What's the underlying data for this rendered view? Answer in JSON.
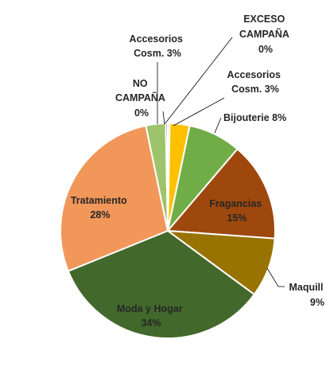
{
  "chart_data": {
    "type": "pie",
    "title": "",
    "slices": [
      {
        "label": "EXCESO CAMPAÑA",
        "percent_label": "0%",
        "value": 0.3,
        "color": "#FFC000"
      },
      {
        "label": "Accesorios Cosm.",
        "percent_label": "3%",
        "value": 3,
        "color": "#FFC000"
      },
      {
        "label": "Bijouterie",
        "percent_label": "8%",
        "value": 8,
        "color": "#70AD47"
      },
      {
        "label": "Fragancias",
        "percent_label": "15%",
        "value": 15,
        "color": "#9E480E"
      },
      {
        "label": "Maquill",
        "percent_label": "9%",
        "value": 9,
        "color": "#997300"
      },
      {
        "label": "Moda y Hogar",
        "percent_label": "34%",
        "value": 34,
        "color": "#43682B"
      },
      {
        "label": "Tratamiento",
        "percent_label": "28%",
        "value": 28,
        "color": "#F1975A"
      },
      {
        "label": "Accesorios Cosm.",
        "percent_label": "3%",
        "value": 3,
        "color": "#9DC46C"
      },
      {
        "label": "NO CAMPAÑA",
        "percent_label": "0%",
        "value": 0.3,
        "color": "#4472C4"
      }
    ],
    "legend": "none"
  },
  "labels": {
    "exceso_line1": "EXCESO",
    "exceso_line2": "CAMPAÑA",
    "exceso_pct": "0%",
    "acc1_line1": "Accesorios",
    "acc1_line2": "Cosm. 3%",
    "bijouterie": "Bijouterie 8%",
    "fragancias": "Fragancias",
    "fragancias_pct": "15%",
    "maquill": "Maquill",
    "maquill_pct": "9%",
    "moda": "Moda y Hogar",
    "moda_pct": "34%",
    "tratamiento": "Tratamiento",
    "tratamiento_pct": "28%",
    "acc2_line1": "Accesorios",
    "acc2_line2": "Cosm. 3%",
    "no_line1": "NO",
    "no_line2": "CAMPAÑA",
    "no_pct": "0%"
  }
}
